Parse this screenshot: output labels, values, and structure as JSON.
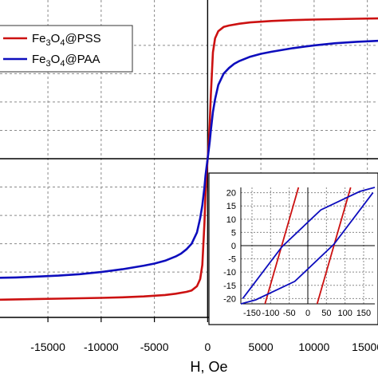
{
  "colors": {
    "pss": "#cc1111",
    "paa": "#0d0dbd",
    "grid": "#8a8a8a",
    "axis": "#000000"
  },
  "chart_data": [
    {
      "type": "line",
      "xlabel": "H, Oe",
      "ylabel": "",
      "xlim": [
        -19500,
        16000
      ],
      "ylim": [
        -1.12,
        1.12
      ],
      "xticks": [
        -15000,
        -10000,
        -5000,
        0,
        5000,
        10000,
        15000
      ],
      "xtick_labels": [
        "-15000",
        "-10000",
        "-5000",
        "0",
        "5000",
        "10000",
        "15000"
      ],
      "grid": true,
      "legend": {
        "position": "top-left",
        "entries": [
          {
            "label": "Fe3O4@PSS",
            "rich": [
              "Fe",
              "3",
              "O",
              "4",
              "@PSS"
            ]
          },
          {
            "label": "Fe3O4@PAA",
            "rich": [
              "Fe",
              "3",
              "O",
              "4",
              "@PAA"
            ]
          }
        ]
      },
      "series": [
        {
          "name": "Fe3O4@PSS",
          "color": "#cc1111",
          "x": [
            -19500,
            -18000,
            -16000,
            -14000,
            -12000,
            -10000,
            -8000,
            -6000,
            -4000,
            -3000,
            -2000,
            -1500,
            -1000,
            -700,
            -500,
            -300,
            -200,
            -100,
            0,
            100,
            200,
            300,
            500,
            700,
            1000,
            1500,
            2000,
            3000,
            4000,
            6000,
            8000,
            10000,
            12000,
            14000,
            16000
          ],
          "y": [
            -0.995,
            -0.993,
            -0.99,
            -0.988,
            -0.985,
            -0.982,
            -0.978,
            -0.972,
            -0.962,
            -0.953,
            -0.94,
            -0.93,
            -0.9,
            -0.85,
            -0.75,
            -0.45,
            -0.25,
            -0.1,
            0.0,
            0.1,
            0.25,
            0.45,
            0.75,
            0.85,
            0.9,
            0.93,
            0.94,
            0.953,
            0.962,
            0.972,
            0.978,
            0.982,
            0.985,
            0.988,
            0.99
          ]
        },
        {
          "name": "Fe3O4@PAA",
          "color": "#0d0dbd",
          "x": [
            -19500,
            -18000,
            -16000,
            -14000,
            -12000,
            -10000,
            -8000,
            -6000,
            -5000,
            -4000,
            -3000,
            -2500,
            -2000,
            -1500,
            -1000,
            -700,
            -500,
            -300,
            -200,
            -100,
            0,
            100,
            200,
            300,
            500,
            700,
            1000,
            1500,
            2000,
            2500,
            3000,
            4000,
            5000,
            6000,
            8000,
            10000,
            12000,
            14000,
            16000
          ],
          "y": [
            -0.84,
            -0.838,
            -0.832,
            -0.825,
            -0.815,
            -0.8,
            -0.78,
            -0.755,
            -0.74,
            -0.72,
            -0.69,
            -0.67,
            -0.64,
            -0.6,
            -0.52,
            -0.42,
            -0.33,
            -0.2,
            -0.12,
            -0.06,
            0.0,
            0.06,
            0.12,
            0.2,
            0.33,
            0.42,
            0.52,
            0.6,
            0.64,
            0.67,
            0.69,
            0.72,
            0.74,
            0.755,
            0.78,
            0.8,
            0.815,
            0.825,
            0.832
          ]
        }
      ]
    },
    {
      "type": "line",
      "title": "",
      "xlim": [
        -180,
        180
      ],
      "ylim": [
        -22,
        22
      ],
      "xticks": [
        -150,
        -100,
        -50,
        0,
        50,
        100,
        150
      ],
      "xtick_labels": [
        "-150",
        "-100",
        "-50",
        "0",
        "50",
        "100",
        "150"
      ],
      "yticks": [
        -20,
        -15,
        -10,
        -5,
        0,
        5,
        10,
        15,
        20
      ],
      "ytick_labels": [
        "-20",
        "-15",
        "-10",
        "-5",
        "0",
        "5",
        "10",
        "15",
        "20"
      ],
      "grid": true,
      "series": [
        {
          "name": "Fe3O4@PSS",
          "color": "#cc1111",
          "x": [
            -115,
            -70,
            -25
          ],
          "y": [
            -22,
            0,
            22
          ]
        },
        {
          "name": "Fe3O4@PSS",
          "color": "#cc1111",
          "x": [
            25,
            70,
            115
          ],
          "y": [
            -22,
            0,
            22
          ]
        },
        {
          "name": "Fe3O4@PAA",
          "color": "#0d0dbd",
          "x": [
            -175,
            -70,
            35,
            140,
            180
          ],
          "y": [
            -20,
            -0.5,
            13.5,
            20.5,
            22
          ]
        },
        {
          "name": "Fe3O4@PAA",
          "color": "#0d0dbd",
          "x": [
            -180,
            -140,
            -35,
            70,
            175
          ],
          "y": [
            -22,
            -20.5,
            -13.5,
            0.5,
            20
          ]
        }
      ]
    }
  ]
}
